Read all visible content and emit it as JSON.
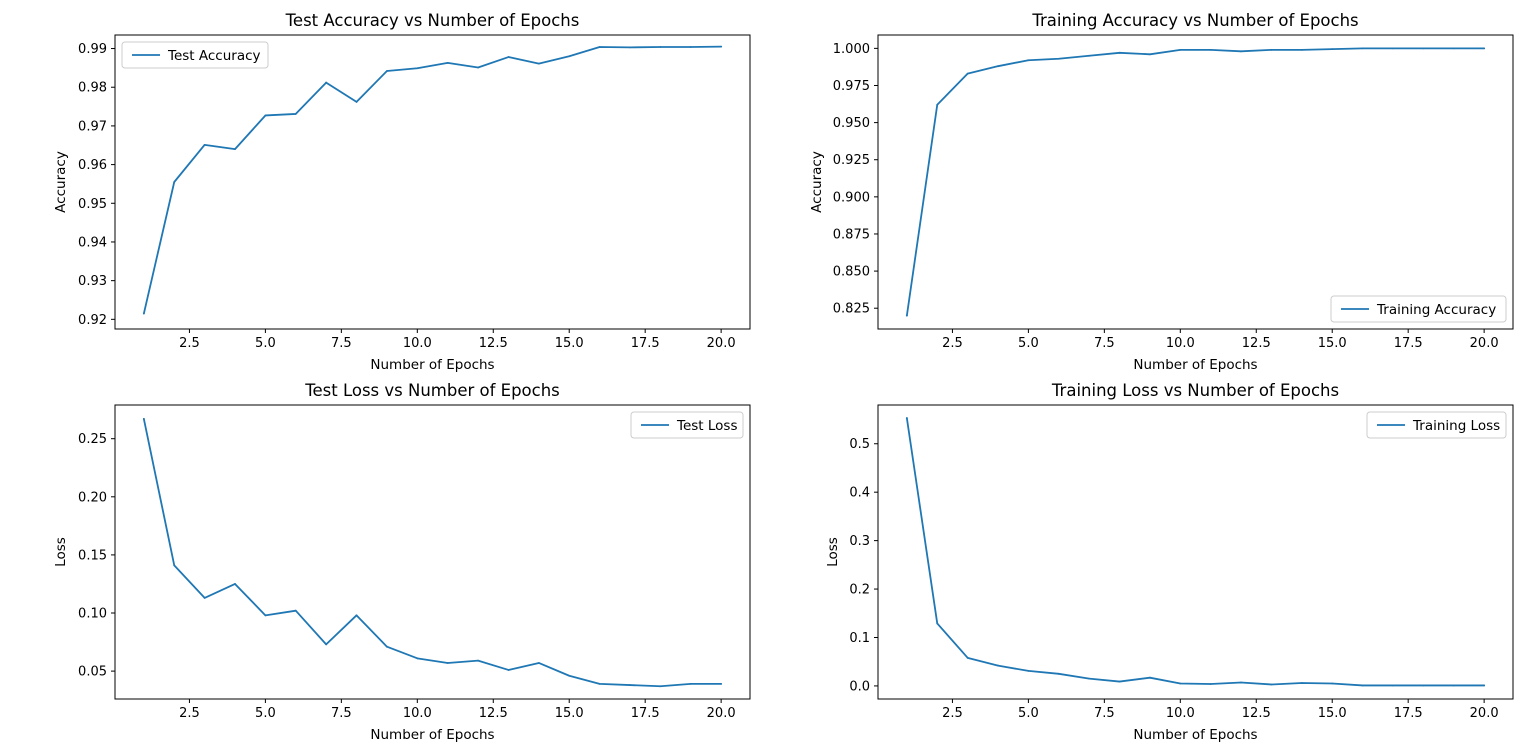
{
  "colors": {
    "series": "#1f77b4"
  },
  "chart_data": [
    {
      "type": "line",
      "title": "Test Accuracy vs Number of Epochs",
      "xlabel": "Number of Epochs",
      "ylabel": "Accuracy",
      "xlim": [
        0.05,
        20.95
      ],
      "ylim": [
        0.9175,
        0.9935
      ],
      "xticks": [
        2.5,
        5,
        7.5,
        10,
        12.5,
        15,
        17.5,
        20
      ],
      "xtick_labels": [
        "2.5",
        "5.0",
        "7.5",
        "10.0",
        "12.5",
        "15.0",
        "17.5",
        "20.0"
      ],
      "yticks": [
        0.92,
        0.93,
        0.94,
        0.95,
        0.96,
        0.97,
        0.98,
        0.99
      ],
      "ytick_labels": [
        "0.92",
        "0.93",
        "0.94",
        "0.95",
        "0.96",
        "0.97",
        "0.98",
        "0.99"
      ],
      "legend_position": "upper-left",
      "grid": false,
      "series": [
        {
          "name": "Test Accuracy",
          "x": [
            1,
            2,
            3,
            4,
            5,
            6,
            7,
            8,
            9,
            10,
            11,
            12,
            13,
            14,
            15,
            16,
            17,
            18,
            19,
            20
          ],
          "values": [
            0.9215,
            0.9555,
            0.9651,
            0.964,
            0.9727,
            0.9731,
            0.9812,
            0.9762,
            0.9842,
            0.9849,
            0.9863,
            0.9851,
            0.9878,
            0.9861,
            0.988,
            0.9904,
            0.9903,
            0.9904,
            0.9904,
            0.9905
          ]
        }
      ]
    },
    {
      "type": "line",
      "title": "Training Accuracy vs Number of Epochs",
      "xlabel": "Number of Epochs",
      "ylabel": "Accuracy",
      "xlim": [
        0.05,
        20.95
      ],
      "ylim": [
        0.811,
        1.009
      ],
      "xticks": [
        2.5,
        5,
        7.5,
        10,
        12.5,
        15,
        17.5,
        20
      ],
      "xtick_labels": [
        "2.5",
        "5.0",
        "7.5",
        "10.0",
        "12.5",
        "15.0",
        "17.5",
        "20.0"
      ],
      "yticks": [
        0.825,
        0.85,
        0.875,
        0.9,
        0.925,
        0.95,
        0.975,
        1.0
      ],
      "ytick_labels": [
        "0.825",
        "0.850",
        "0.875",
        "0.900",
        "0.925",
        "0.950",
        "0.975",
        "1.000"
      ],
      "legend_position": "lower-right",
      "grid": false,
      "series": [
        {
          "name": "Training Accuracy",
          "x": [
            1,
            2,
            3,
            4,
            5,
            6,
            7,
            8,
            9,
            10,
            11,
            12,
            13,
            14,
            15,
            16,
            17,
            18,
            19,
            20
          ],
          "values": [
            0.82,
            0.962,
            0.983,
            0.988,
            0.992,
            0.993,
            0.995,
            0.997,
            0.996,
            0.999,
            0.999,
            0.998,
            0.999,
            0.999,
            0.9995,
            1.0,
            1.0,
            1.0,
            1.0,
            1.0
          ]
        }
      ]
    },
    {
      "type": "line",
      "title": "Test Loss vs Number of Epochs",
      "xlabel": "Number of Epochs",
      "ylabel": "Loss",
      "xlim": [
        0.05,
        20.95
      ],
      "ylim": [
        0.026,
        0.279
      ],
      "xticks": [
        2.5,
        5,
        7.5,
        10,
        12.5,
        15,
        17.5,
        20
      ],
      "xtick_labels": [
        "2.5",
        "5.0",
        "7.5",
        "10.0",
        "12.5",
        "15.0",
        "17.5",
        "20.0"
      ],
      "yticks": [
        0.05,
        0.1,
        0.15,
        0.2,
        0.25
      ],
      "ytick_labels": [
        "0.05",
        "0.10",
        "0.15",
        "0.20",
        "0.25"
      ],
      "legend_position": "upper-right",
      "grid": false,
      "series": [
        {
          "name": "Test Loss",
          "x": [
            1,
            2,
            3,
            4,
            5,
            6,
            7,
            8,
            9,
            10,
            11,
            12,
            13,
            14,
            15,
            16,
            17,
            18,
            19,
            20
          ],
          "values": [
            0.267,
            0.141,
            0.113,
            0.125,
            0.098,
            0.102,
            0.073,
            0.098,
            0.071,
            0.061,
            0.057,
            0.059,
            0.051,
            0.057,
            0.046,
            0.039,
            0.038,
            0.037,
            0.039,
            0.039
          ]
        }
      ]
    },
    {
      "type": "line",
      "title": "Training Loss vs Number of Epochs",
      "xlabel": "Number of Epochs",
      "ylabel": "Loss",
      "xlim": [
        0.05,
        20.95
      ],
      "ylim": [
        -0.027,
        0.58
      ],
      "xticks": [
        2.5,
        5,
        7.5,
        10,
        12.5,
        15,
        17.5,
        20
      ],
      "xtick_labels": [
        "2.5",
        "5.0",
        "7.5",
        "10.0",
        "12.5",
        "15.0",
        "17.5",
        "20.0"
      ],
      "yticks": [
        0.0,
        0.1,
        0.2,
        0.3,
        0.4,
        0.5
      ],
      "ytick_labels": [
        "0.0",
        "0.1",
        "0.2",
        "0.3",
        "0.4",
        "0.5"
      ],
      "legend_position": "upper-right",
      "grid": false,
      "series": [
        {
          "name": "Training Loss",
          "x": [
            1,
            2,
            3,
            4,
            5,
            6,
            7,
            8,
            9,
            10,
            11,
            12,
            13,
            14,
            15,
            16,
            17,
            18,
            19,
            20
          ],
          "values": [
            0.553,
            0.129,
            0.058,
            0.042,
            0.031,
            0.025,
            0.015,
            0.009,
            0.017,
            0.005,
            0.004,
            0.007,
            0.003,
            0.006,
            0.005,
            0.001,
            0.001,
            0.001,
            0.001,
            0.001
          ]
        }
      ]
    }
  ]
}
